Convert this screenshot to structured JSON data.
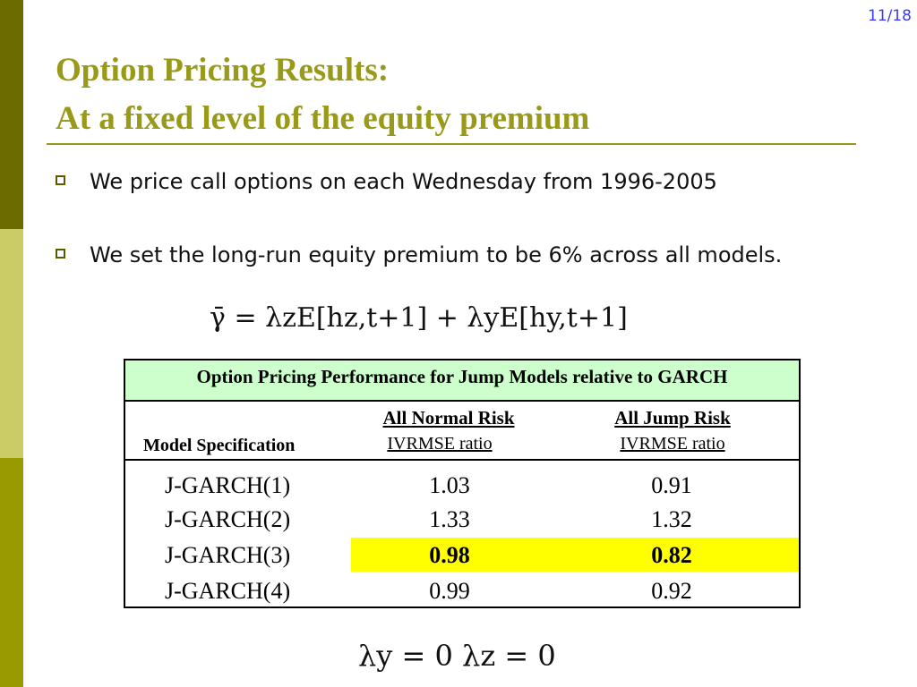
{
  "page": {
    "number": "11/18"
  },
  "title": {
    "line1": "Option Pricing Results:",
    "line2": "At a fixed level of the equity premium"
  },
  "bullets": [
    "We price call options on each Wednesday from 1996-2005",
    "We set the long-run equity premium to be 6% across all models."
  ],
  "equations": {
    "premium": "γ̄  =  λzE[hz,t+1] + λyE[hy,t+1]",
    "constraint": "λy  =  0      λz  =  0"
  },
  "table": {
    "title": "Option Pricing Performance for Jump Models relative to GARCH",
    "model_header": "Model Specification",
    "groups": [
      {
        "name": "All Normal Risk",
        "metric": "IVRMSE ratio"
      },
      {
        "name": "All Jump Risk",
        "metric": "IVRMSE ratio"
      }
    ],
    "rows": [
      {
        "model": "J-GARCH(1)",
        "normal": "1.03",
        "jump": "0.91"
      },
      {
        "model": "J-GARCH(2)",
        "normal": "1.33",
        "jump": "1.32"
      },
      {
        "model": "J-GARCH(3)",
        "normal": "0.98",
        "jump": "0.82"
      },
      {
        "model": "J-GARCH(4)",
        "normal": "0.99",
        "jump": "0.92"
      }
    ],
    "highlight_color": "#ffff00",
    "header_color": "#ccffcc"
  },
  "theme": {
    "title_color": "#99991a",
    "page_number_color": "#3a3aff"
  }
}
